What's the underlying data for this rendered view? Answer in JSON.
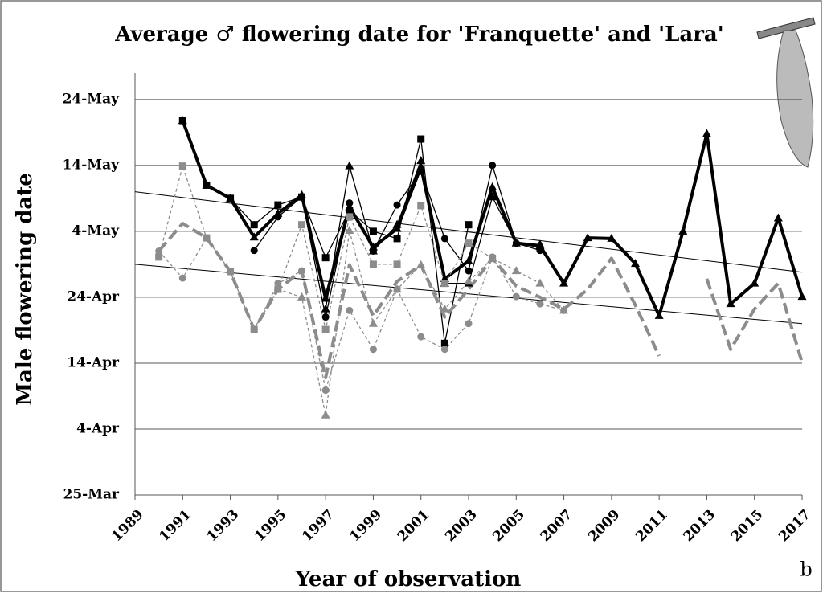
{
  "chart_data": {
    "type": "line",
    "title": "Average ♂ flowering date for 'Franquette' and 'Lara'",
    "x_label": "Year of observation",
    "y_label": "Male flowering date",
    "panel_label": "b",
    "x": [
      1990,
      1991,
      1992,
      1993,
      1994,
      1995,
      1996,
      1997,
      1998,
      1999,
      2000,
      2001,
      2002,
      2003,
      2004,
      2005,
      2006,
      2007,
      2008,
      2009,
      2010,
      2011,
      2012,
      2013,
      2014,
      2015,
      2016,
      2017
    ],
    "xlim": [
      1989,
      2017
    ],
    "xticks": [
      1989,
      1991,
      1993,
      1995,
      1997,
      1999,
      2001,
      2003,
      2005,
      2007,
      2009,
      2011,
      2013,
      2015,
      2017
    ],
    "ylim": [
      84,
      148
    ],
    "yticks": [
      {
        "value": 84,
        "label": "25-Mar"
      },
      {
        "value": 94,
        "label": "4-Apr"
      },
      {
        "value": 104,
        "label": "14-Apr"
      },
      {
        "value": 114,
        "label": "24-Apr"
      },
      {
        "value": 124,
        "label": "4-May"
      },
      {
        "value": 134,
        "label": "14-May"
      },
      {
        "value": 144,
        "label": "24-May"
      }
    ],
    "grid": true,
    "series": [
      {
        "color": "#000000",
        "width": 4,
        "dash": false,
        "marker": "triangle",
        "values": [
          null,
          140.8,
          131.0,
          129.0,
          123.1,
          126.7,
          129.5,
          113.8,
          127.7,
          121.6,
          124.4,
          133.8,
          116.8,
          119.5,
          130.7,
          122.2,
          121.8,
          116.1,
          123.0,
          122.9,
          119.1,
          111.2,
          124.0,
          138.8,
          113.0,
          116.1,
          126.0,
          114.1
        ]
      },
      {
        "color": "#000000",
        "width": 1.3,
        "dash": false,
        "marker": "square",
        "values": [
          null,
          140.8,
          131.0,
          129.0,
          125.0,
          128.0,
          129.2,
          120.0,
          127.2,
          124.0,
          122.9,
          138.0,
          107.0,
          125.0,
          null,
          null,
          null,
          null,
          null,
          null,
          null,
          null,
          null,
          null,
          null,
          null,
          null,
          null
        ]
      },
      {
        "color": "#000000",
        "width": 1.3,
        "dash": false,
        "marker": "circle",
        "values": [
          null,
          null,
          null,
          null,
          121.1,
          126.2,
          129.2,
          111.0,
          128.3,
          121.0,
          128.0,
          133.1,
          122.9,
          118.0,
          134.0,
          122.2,
          121.1,
          null,
          null,
          null,
          null,
          null,
          null,
          null,
          null,
          null,
          null,
          null
        ]
      },
      {
        "color": "#000000",
        "width": 1.3,
        "dash": false,
        "marker": "triangle",
        "values": [
          null,
          null,
          null,
          null,
          null,
          null,
          null,
          112.2,
          133.9,
          121.0,
          125.0,
          134.7,
          116.1,
          116.1,
          129.2,
          122.2,
          122.0,
          null,
          null,
          null,
          null,
          null,
          null,
          null,
          null,
          null,
          null,
          null
        ]
      },
      {
        "color": "#8c8c8c",
        "width": 4,
        "dash": true,
        "marker": "none",
        "values": [
          121.0,
          125.2,
          123.0,
          117.9,
          109.1,
          115.2,
          118.0,
          101.8,
          118.9,
          111.2,
          116.4,
          118.9,
          111.0,
          115.2,
          119.9,
          115.7,
          114.0,
          112.2,
          115.2,
          119.9,
          112.8,
          105.1,
          null,
          116.8,
          106.1,
          112.2,
          116.1,
          104.1
        ]
      },
      {
        "color": "#8c8c8c",
        "width": 1.3,
        "dash": true,
        "marker": "square",
        "values": [
          120.1,
          133.9,
          123.0,
          117.9,
          109.1,
          115.2,
          125.0,
          109.1,
          126.2,
          119.0,
          119.0,
          127.9,
          116.1,
          122.2,
          119.9,
          null,
          null,
          null,
          null,
          null,
          null,
          null,
          null,
          null,
          null,
          null,
          null,
          null
        ]
      },
      {
        "color": "#8c8c8c",
        "width": 1.3,
        "dash": true,
        "marker": "circle",
        "values": [
          121.0,
          116.9,
          123.0,
          117.9,
          109.1,
          116.1,
          118.0,
          99.9,
          112.0,
          106.1,
          115.2,
          108.0,
          106.1,
          110.0,
          120.1,
          114.1,
          113.0,
          112.0,
          null,
          null,
          null,
          null,
          null,
          null,
          null,
          null,
          null,
          null
        ]
      },
      {
        "color": "#8c8c8c",
        "width": 1.3,
        "dash": true,
        "marker": "triangle",
        "values": [
          null,
          null,
          null,
          null,
          null,
          115.2,
          114.0,
          96.1,
          124.1,
          110.0,
          115.2,
          118.9,
          112.2,
          116.4,
          119.9,
          118.0,
          116.1,
          112.0,
          null,
          null,
          null,
          null,
          null,
          null,
          null,
          null,
          null,
          null
        ]
      }
    ],
    "trendlines": [
      {
        "color": "#000000",
        "x": [
          1989,
          2017
        ],
        "values": [
          130.0,
          117.8
        ]
      },
      {
        "color": "#000000",
        "x": [
          1989,
          2017
        ],
        "values": [
          119.0,
          110.0
        ]
      }
    ]
  }
}
